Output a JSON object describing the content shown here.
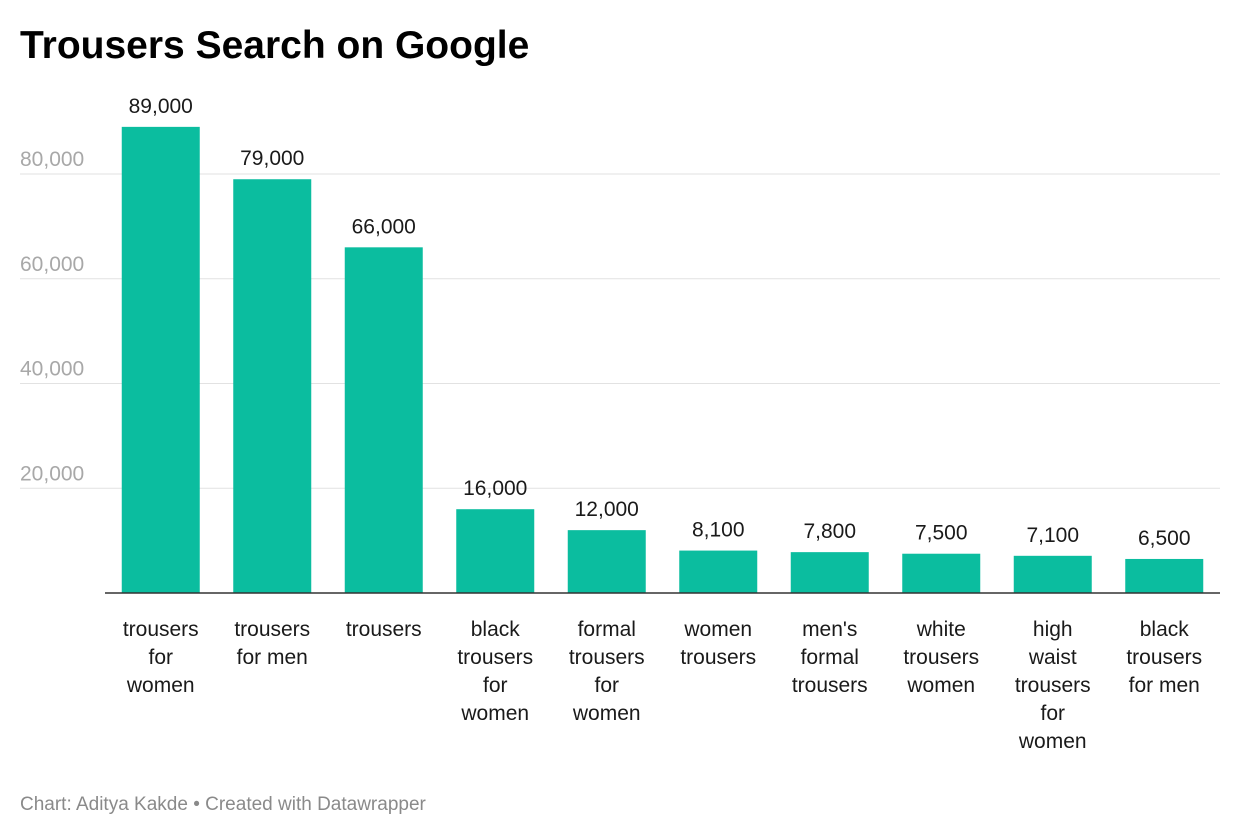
{
  "title": "Trousers Search on Google",
  "footer": "Chart: Aditya Kakde • Created with Datawrapper",
  "colors": {
    "bar": "#0bbd9f",
    "grid": "#e2e2e2",
    "axis": "#333333",
    "tick_text": "#a8a8a8",
    "label_text": "#1a1a1a"
  },
  "chart_data": {
    "type": "bar",
    "title": "Trousers Search on Google",
    "xlabel": "",
    "ylabel": "",
    "ylim": [
      0,
      89000
    ],
    "yticks": [
      20000,
      40000,
      60000,
      80000
    ],
    "ytick_labels": [
      "20,000",
      "40,000",
      "60,000",
      "80,000"
    ],
    "grid": true,
    "categories": [
      "trousers for women",
      "trousers for men",
      "trousers",
      "black trousers for women",
      "formal trousers for women",
      "women trousers",
      "men's formal trousers",
      "white trousers women",
      "high waist trousers for women",
      "black trousers for men"
    ],
    "category_lines": [
      [
        "trousers",
        "for",
        "women"
      ],
      [
        "trousers",
        "for men"
      ],
      [
        "trousers"
      ],
      [
        "black",
        "trousers",
        "for",
        "women"
      ],
      [
        "formal",
        "trousers",
        "for",
        "women"
      ],
      [
        "women",
        "trousers"
      ],
      [
        "men's",
        "formal",
        "trousers"
      ],
      [
        "white",
        "trousers",
        "women"
      ],
      [
        "high",
        "waist",
        "trousers",
        "for",
        "women"
      ],
      [
        "black",
        "trousers",
        "for men"
      ]
    ],
    "values": [
      89000,
      79000,
      66000,
      16000,
      12000,
      8100,
      7800,
      7500,
      7100,
      6500
    ],
    "value_labels": [
      "89,000",
      "79,000",
      "66,000",
      "16,000",
      "12,000",
      "8,100",
      "7,800",
      "7,500",
      "7,100",
      "6,500"
    ]
  }
}
